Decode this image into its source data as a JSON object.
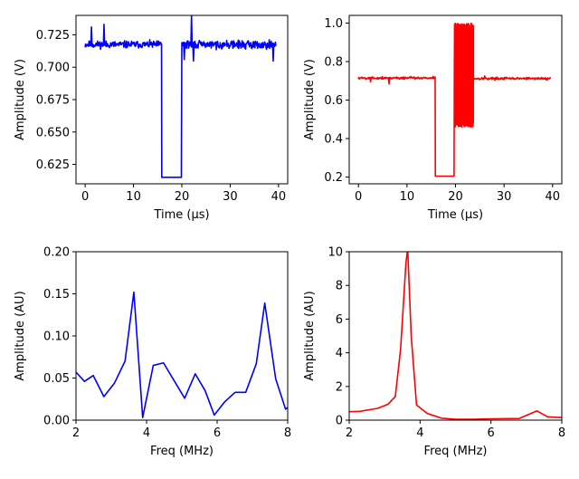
{
  "chart_data": [
    {
      "id": "time-blue",
      "type": "line",
      "xlabel": "Time (μs)",
      "ylabel": "Amplitude (V)",
      "xlim": [
        -1.9,
        41.9
      ],
      "ylim": [
        0.61,
        0.74
      ],
      "xticks": [
        0,
        10,
        20,
        30,
        40
      ],
      "yticks": [
        0.625,
        0.65,
        0.675,
        0.7,
        0.725
      ],
      "ytick_labels": [
        "0.625",
        "0.650",
        "0.675",
        "0.700",
        "0.725"
      ],
      "color": "#0000ff",
      "series": [
        {
          "segments": [
            {
              "kind": "noise",
              "x0": 0,
              "x1": 15.8,
              "center": 0.7175,
              "amp": 0.004,
              "step": 0.08,
              "seed": 11
            },
            {
              "kind": "points",
              "x": [
                15.8,
                15.85,
                19.9,
                20.0
              ],
              "y": [
                0.718,
                0.615,
                0.615,
                0.719
              ]
            },
            {
              "kind": "noise",
              "x0": 20.0,
              "x1": 39.5,
              "center": 0.7175,
              "amp": 0.0045,
              "step": 0.08,
              "seed": 29
            },
            {
              "kind": "spikes",
              "points": [
                [
                  1.3,
                  0.731
                ],
                [
                  3.9,
                  0.733
                ],
                [
                  20.5,
                  0.706
                ],
                [
                  22.0,
                  0.74
                ],
                [
                  22.4,
                  0.705
                ],
                [
                  38.9,
                  0.705
                ]
              ]
            }
          ]
        }
      ]
    },
    {
      "id": "time-red",
      "type": "line",
      "xlabel": "Time (μs)",
      "ylabel": "Amplitude (V)",
      "xlim": [
        -1.9,
        41.9
      ],
      "ylim": [
        0.165,
        1.04
      ],
      "xticks": [
        0,
        10,
        20,
        30,
        40
      ],
      "yticks": [
        0.2,
        0.4,
        0.6,
        0.8,
        1.0
      ],
      "ytick_labels": [
        "0.2",
        "0.4",
        "0.6",
        "0.8",
        "1.0"
      ],
      "color": "#ff0000",
      "series": [
        {
          "segments": [
            {
              "kind": "noise",
              "x0": 0,
              "x1": 15.8,
              "center": 0.715,
              "amp": 0.01,
              "step": 0.1,
              "seed": 5
            },
            {
              "kind": "points",
              "x": [
                15.8,
                15.85,
                19.7,
                19.75
              ],
              "y": [
                0.72,
                0.205,
                0.205,
                0.72
              ]
            },
            {
              "kind": "burst",
              "x0": 19.8,
              "x1": 23.7,
              "low": 0.46,
              "high": 1.0,
              "step": 0.025,
              "seed": 7
            },
            {
              "kind": "noise",
              "x0": 23.7,
              "x1": 39.5,
              "center": 0.712,
              "amp": 0.009,
              "step": 0.1,
              "seed": 17
            },
            {
              "kind": "spikes",
              "points": [
                [
                  6.3,
                  0.685
                ],
                [
                  2.5,
                  0.695
                ],
                [
                  26.0,
                  0.725
                ]
              ]
            }
          ]
        }
      ]
    },
    {
      "id": "freq-blue",
      "type": "line",
      "xlabel": "Freq (MHz)",
      "ylabel": "Amplitude (AU)",
      "xlim": [
        2,
        8
      ],
      "ylim": [
        0,
        0.2
      ],
      "xticks": [
        2,
        4,
        6,
        8
      ],
      "yticks": [
        0.0,
        0.05,
        0.1,
        0.15,
        0.2
      ],
      "ytick_labels": [
        "0.00",
        "0.05",
        "0.10",
        "0.15",
        "0.20"
      ],
      "color": "#0000ff",
      "series": [
        {
          "x": [
            2.0,
            2.24,
            2.49,
            2.79,
            3.09,
            3.39,
            3.64,
            3.89,
            4.19,
            4.48,
            4.78,
            5.08,
            5.38,
            5.66,
            5.92,
            6.22,
            6.51,
            6.81,
            7.11,
            7.35,
            7.66,
            7.94,
            8.0
          ],
          "y": [
            0.057,
            0.046,
            0.053,
            0.028,
            0.044,
            0.07,
            0.152,
            0.003,
            0.065,
            0.068,
            0.047,
            0.026,
            0.055,
            0.035,
            0.006,
            0.022,
            0.033,
            0.033,
            0.067,
            0.139,
            0.049,
            0.013,
            0.015
          ]
        }
      ]
    },
    {
      "id": "freq-red",
      "type": "line",
      "xlabel": "Freq (MHz)",
      "ylabel": "Amplitude (AU)",
      "xlim": [
        2,
        8
      ],
      "ylim": [
        0,
        10
      ],
      "xticks": [
        2,
        4,
        6,
        8
      ],
      "yticks": [
        0,
        2,
        4,
        6,
        8,
        10
      ],
      "ytick_labels": [
        "0",
        "2",
        "4",
        "6",
        "8",
        "10"
      ],
      "color": "#ff0000",
      "series": [
        {
          "x": [
            2.0,
            2.3,
            2.8,
            3.1,
            3.3,
            3.45,
            3.6,
            3.65,
            3.75,
            3.9,
            4.2,
            4.6,
            5.0,
            5.5,
            6.0,
            6.8,
            7.3,
            7.6,
            8.0
          ],
          "y": [
            0.5,
            0.52,
            0.7,
            0.95,
            1.4,
            4.2,
            9.3,
            10.2,
            5.0,
            0.9,
            0.4,
            0.12,
            0.05,
            0.05,
            0.08,
            0.1,
            0.55,
            0.2,
            0.15
          ]
        }
      ]
    }
  ]
}
